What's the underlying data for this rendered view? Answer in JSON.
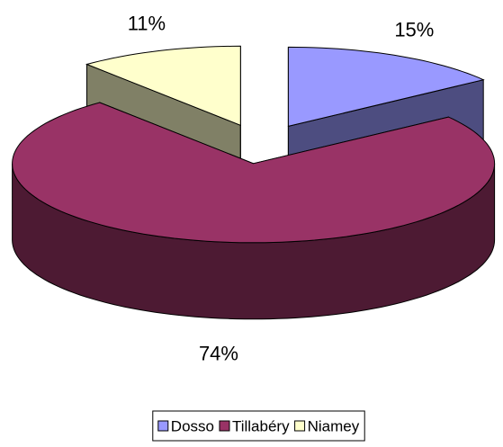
{
  "chart_data": {
    "type": "pie",
    "categories": [
      "Dosso",
      "Tillabéry",
      "Niamey"
    ],
    "values": [
      15,
      74,
      11
    ],
    "value_labels": [
      "15%",
      "74%",
      "11%"
    ],
    "colors": [
      "#9999ff",
      "#993366",
      "#ffffcc"
    ],
    "legend": "bottom"
  }
}
